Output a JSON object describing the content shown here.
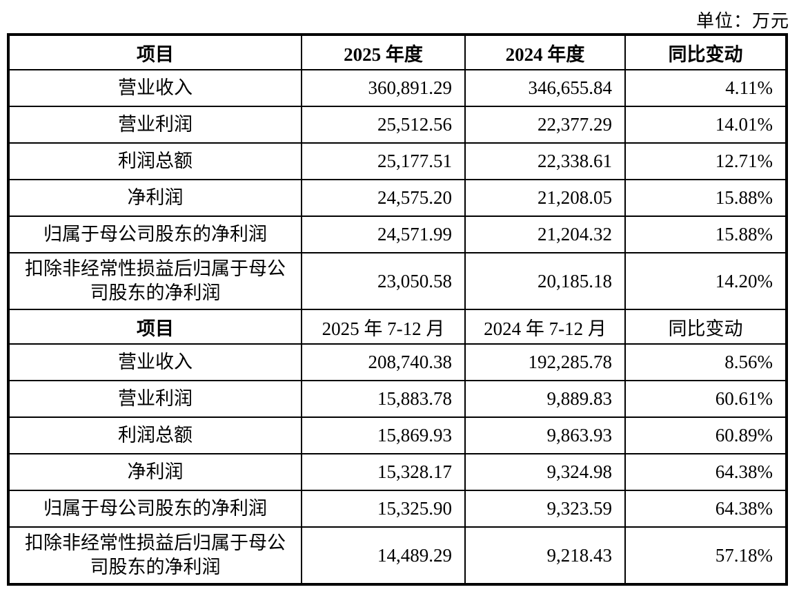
{
  "page": {
    "unit_label": "单位：万元"
  },
  "table": {
    "sections": [
      {
        "header": [
          "项目",
          "2025 年度",
          "2024 年度",
          "同比变动"
        ],
        "rows": [
          {
            "item": "营业收入",
            "values": [
              "360,891.29",
              "346,655.84",
              "4.11%"
            ]
          },
          {
            "item": "营业利润",
            "values": [
              "25,512.56",
              "22,377.29",
              "14.01%"
            ]
          },
          {
            "item": "利润总额",
            "values": [
              "25,177.51",
              "22,338.61",
              "12.71%"
            ]
          },
          {
            "item": "净利润",
            "values": [
              "24,575.20",
              "21,208.05",
              "15.88%"
            ]
          },
          {
            "item": "归属于母公司股东的净利润",
            "values": [
              "24,571.99",
              "21,204.32",
              "15.88%"
            ]
          },
          {
            "item": "扣除非经常性损益后归属于母公司股东的净利润",
            "values": [
              "23,050.58",
              "20,185.18",
              "14.20%"
            ]
          }
        ]
      },
      {
        "header": [
          "项目",
          "2025 年 7-12 月",
          "2024 年 7-12 月",
          "同比变动"
        ],
        "rows": [
          {
            "item": "营业收入",
            "values": [
              "208,740.38",
              "192,285.78",
              "8.56%"
            ]
          },
          {
            "item": "营业利润",
            "values": [
              "15,883.78",
              "9,889.83",
              "60.61%"
            ]
          },
          {
            "item": "利润总额",
            "values": [
              "15,869.93",
              "9,863.93",
              "60.89%"
            ]
          },
          {
            "item": "净利润",
            "values": [
              "15,328.17",
              "9,324.98",
              "64.38%"
            ]
          },
          {
            "item": "归属于母公司股东的净利润",
            "values": [
              "15,325.90",
              "9,323.59",
              "64.38%"
            ]
          },
          {
            "item": "扣除非经常性损益后归属于母公司股东的净利润",
            "values": [
              "14,489.29",
              "9,218.43",
              "57.18%"
            ]
          }
        ]
      }
    ]
  }
}
